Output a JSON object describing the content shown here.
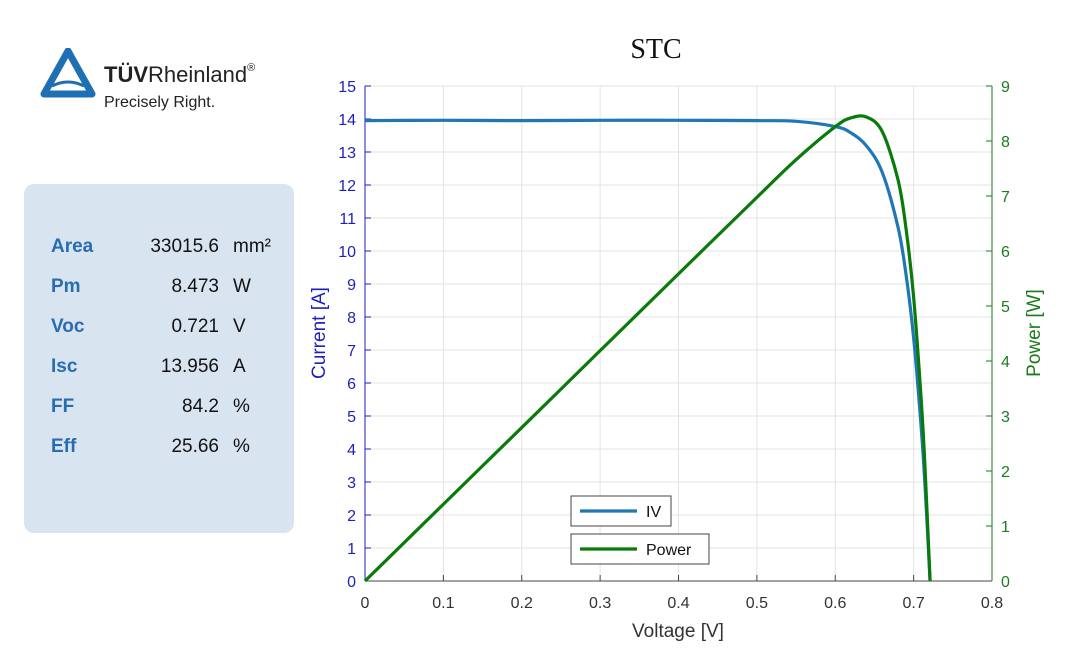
{
  "logo": {
    "brand_bold": "TÜV",
    "brand_rest": "Rheinland",
    "reg": "®",
    "tagline": "Precisely Right."
  },
  "specs": [
    {
      "label": "Area",
      "value": "33015.6",
      "unit": "mm²"
    },
    {
      "label": "Pm",
      "value": "8.473",
      "unit": "W"
    },
    {
      "label": "Voc",
      "value": "0.721",
      "unit": "V"
    },
    {
      "label": "Isc",
      "value": "13.956",
      "unit": "A"
    },
    {
      "label": "FF",
      "value": "84.2",
      "unit": "%"
    },
    {
      "label": "Eff",
      "value": "25.66",
      "unit": "%"
    }
  ],
  "colors": {
    "iv": "#1f77b4",
    "power": "#0a7a0a",
    "left_axis": "#1f1fbf",
    "right_axis": "#1e7a1e"
  },
  "chart_data": {
    "type": "line",
    "title": "STC",
    "xlabel": "Voltage [V]",
    "ylabel": "Current [A]",
    "y2label": "Power [W]",
    "xlim": [
      0,
      0.8
    ],
    "ylim": [
      0,
      15
    ],
    "y2lim": [
      0,
      9
    ],
    "grid": true,
    "legend_placement": "bottom-center",
    "xticks": [
      "0",
      "0.1",
      "0.2",
      "0.3",
      "0.4",
      "0.5",
      "0.6",
      "0.7",
      "0.8"
    ],
    "yticks": [
      "0",
      "1",
      "2",
      "3",
      "4",
      "5",
      "6",
      "7",
      "8",
      "9",
      "10",
      "11",
      "12",
      "13",
      "14",
      "15"
    ],
    "y2ticks": [
      "0",
      "1",
      "2",
      "3",
      "4",
      "5",
      "6",
      "7",
      "8",
      "9"
    ],
    "x": [
      0,
      0.1,
      0.2,
      0.3,
      0.4,
      0.5,
      0.55,
      0.6,
      0.62,
      0.64,
      0.66,
      0.68,
      0.69,
      0.7,
      0.71,
      0.715,
      0.721
    ],
    "series": [
      {
        "name": "IV",
        "axis": "left",
        "values": [
          13.95,
          13.96,
          13.95,
          13.96,
          13.96,
          13.95,
          13.93,
          13.77,
          13.58,
          13.18,
          12.38,
          10.73,
          9.34,
          7.37,
          4.54,
          2.69,
          0
        ]
      },
      {
        "name": "Power",
        "axis": "right",
        "values": [
          0,
          1.396,
          2.79,
          4.188,
          5.584,
          6.975,
          7.66,
          8.26,
          8.42,
          8.435,
          8.17,
          7.3,
          6.44,
          5.16,
          3.22,
          1.92,
          0
        ]
      }
    ]
  }
}
